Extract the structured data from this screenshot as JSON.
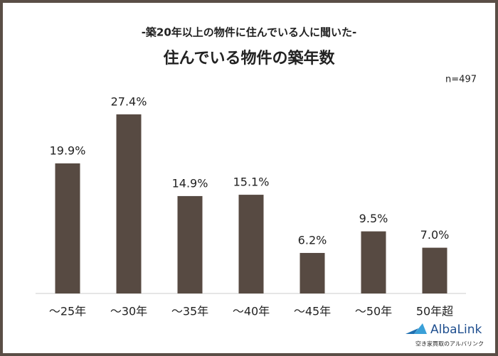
{
  "chart_data": {
    "type": "bar",
    "subtitle": "-築20年以上の物件に住んでいる人に聞いた-",
    "title": "住んでいる物件の築年数",
    "note": "n=497",
    "categories": [
      "～25年",
      "～30年",
      "～35年",
      "～40年",
      "～45年",
      "～50年",
      "50年超"
    ],
    "values": [
      19.9,
      27.4,
      14.9,
      15.1,
      6.2,
      9.5,
      7.0
    ],
    "value_labels": [
      "19.9%",
      "27.4%",
      "14.9%",
      "15.1%",
      "6.2%",
      "9.5%",
      "7.0%"
    ],
    "color": "#574a42"
  },
  "logo": {
    "name": "AlbaLink",
    "tagline": "空き家買取のアルバリンク"
  }
}
